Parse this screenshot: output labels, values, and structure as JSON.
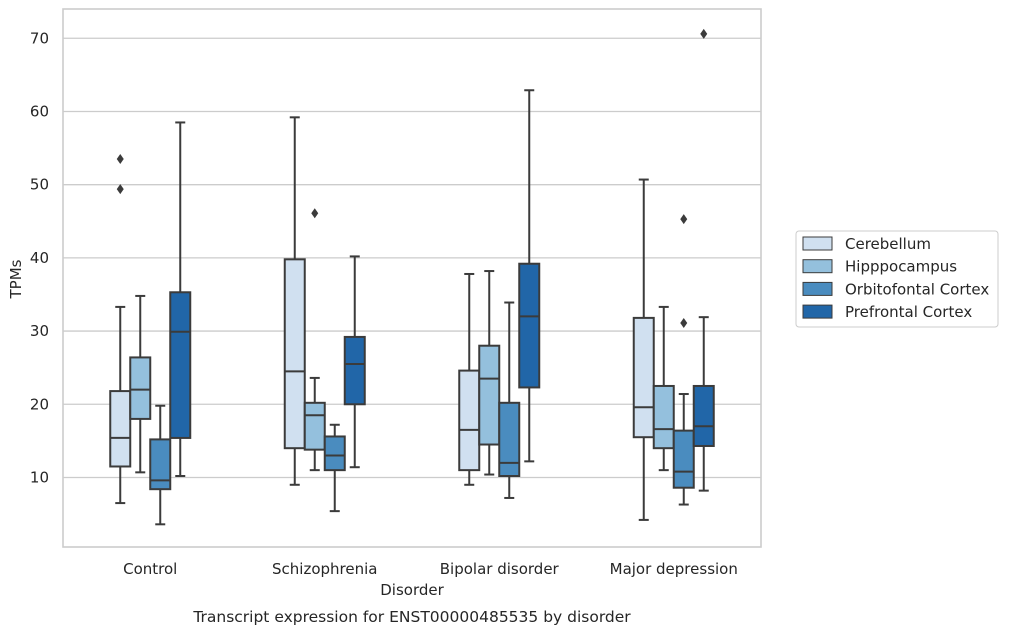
{
  "chart_data": {
    "type": "box",
    "caption": "Transcript expression for ENST00000485535 by disorder",
    "xlabel": "Disorder",
    "ylabel": "TPMs",
    "ylim": [
      0.5,
      74
    ],
    "yticks": [
      10,
      20,
      30,
      40,
      50,
      60,
      70
    ],
    "grid": "horizontal",
    "legend_placement": "right",
    "categories": [
      "Control",
      "Schizophrenia",
      "Bipolar disorder",
      "Major depression"
    ],
    "series": [
      {
        "name": "Cerebellum",
        "color": "#d0e0f0",
        "boxes": [
          {
            "whislo": 6.5,
            "q1": 11.5,
            "med": 15.4,
            "q3": 21.8,
            "whishi": 33.3,
            "fliers": []
          },
          {
            "whislo": 9.0,
            "q1": 14.0,
            "med": 24.5,
            "q3": 39.8,
            "whishi": 59.2,
            "fliers": []
          },
          {
            "whislo": 9.0,
            "q1": 11.0,
            "med": 16.5,
            "q3": 24.6,
            "whishi": 37.8,
            "fliers": []
          },
          {
            "whislo": 4.2,
            "q1": 15.5,
            "med": 19.6,
            "q3": 31.8,
            "whishi": 50.7,
            "fliers": []
          }
        ]
      },
      {
        "name": "Hipppocampus",
        "color": "#94c0dd",
        "boxes": [
          {
            "whislo": 10.7,
            "q1": 18.0,
            "med": 22.0,
            "q3": 26.4,
            "whishi": 34.8,
            "fliers": []
          },
          {
            "whislo": 11.0,
            "q1": 13.8,
            "med": 18.5,
            "q3": 20.2,
            "whishi": 23.6,
            "fliers": [
              46.1
            ]
          },
          {
            "whislo": 10.4,
            "q1": 14.5,
            "med": 23.5,
            "q3": 28.0,
            "whishi": 38.2,
            "fliers": []
          },
          {
            "whislo": 11.0,
            "q1": 14.0,
            "med": 16.6,
            "q3": 22.5,
            "whishi": 33.3,
            "fliers": []
          }
        ]
      },
      {
        "name": "Orbitofontal Cortex",
        "color": "#4a8cbf",
        "boxes": [
          {
            "whislo": 3.6,
            "q1": 8.4,
            "med": 9.6,
            "q3": 15.2,
            "whishi": 19.8,
            "fliers": []
          },
          {
            "whislo": 5.4,
            "q1": 11.0,
            "med": 13.0,
            "q3": 15.6,
            "whishi": 17.2,
            "fliers": []
          },
          {
            "whislo": 7.2,
            "q1": 10.2,
            "med": 12.0,
            "q3": 20.2,
            "whishi": 33.9,
            "fliers": []
          },
          {
            "whislo": 6.3,
            "q1": 8.6,
            "med": 10.8,
            "q3": 16.4,
            "whishi": 21.4,
            "fliers": [
              45.3,
              31.1
            ]
          }
        ]
      },
      {
        "name": "Prefrontal Cortex",
        "color": "#2166a8",
        "boxes": [
          {
            "whislo": 10.2,
            "q1": 15.4,
            "med": 29.9,
            "q3": 35.3,
            "whishi": 58.5,
            "fliers": []
          },
          {
            "whislo": 11.4,
            "q1": 20.0,
            "med": 25.5,
            "q3": 29.2,
            "whishi": 40.2,
            "fliers": []
          },
          {
            "whislo": 12.2,
            "q1": 22.3,
            "med": 32.0,
            "q3": 39.2,
            "whishi": 62.9,
            "fliers": []
          },
          {
            "whislo": 8.2,
            "q1": 14.3,
            "med": 17.0,
            "q3": 22.5,
            "whishi": 31.9,
            "fliers": [
              70.6
            ]
          }
        ]
      }
    ],
    "fliers_extra": [
      {
        "category": 0,
        "series": 0,
        "values": [
          53.5,
          49.4
        ]
      }
    ]
  }
}
